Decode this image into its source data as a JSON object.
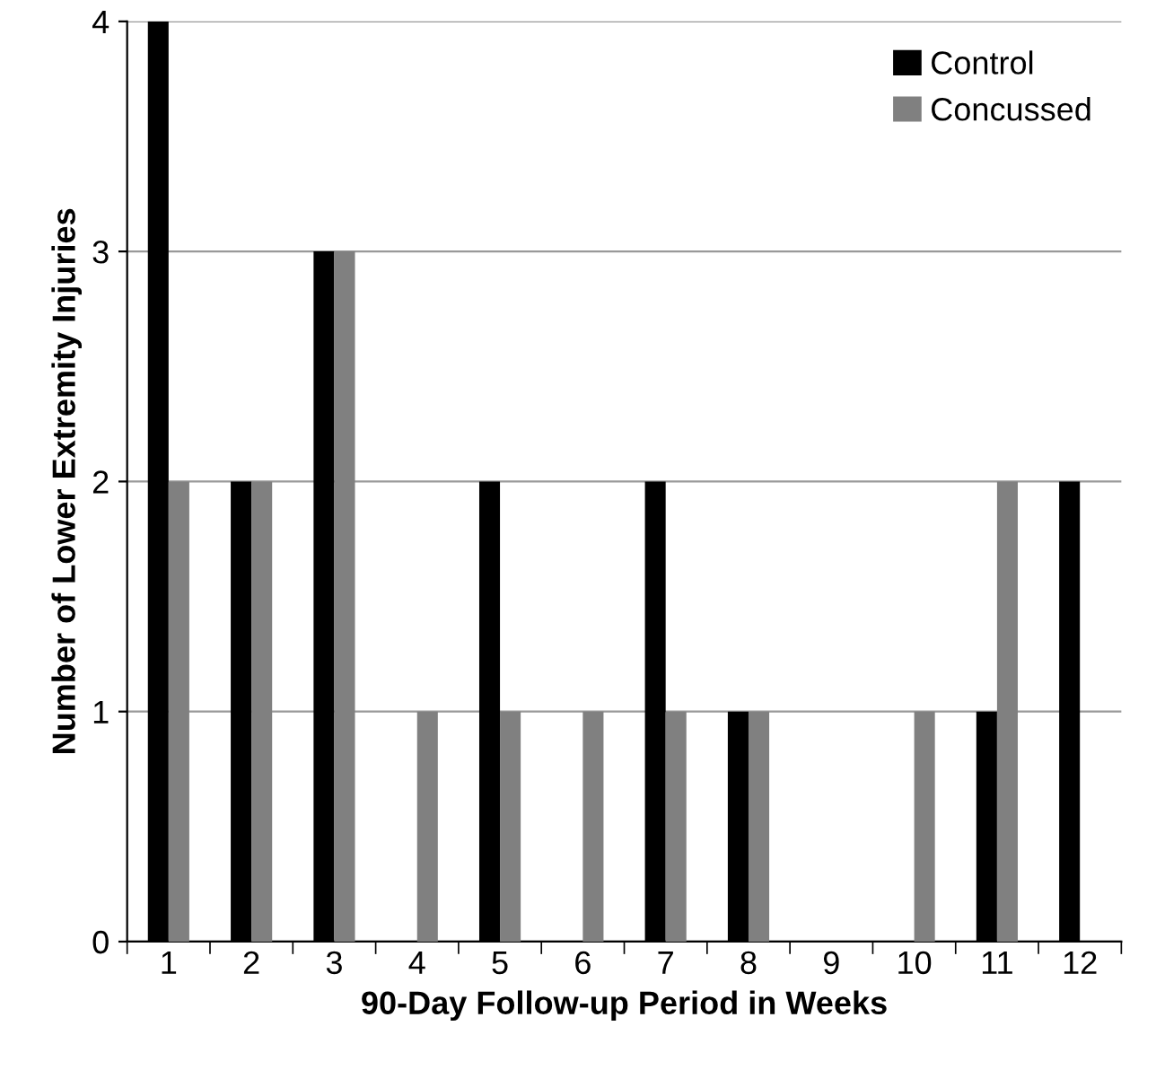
{
  "chart_data": {
    "type": "bar",
    "xlabel": "90-Day Follow-up Period in Weeks",
    "ylabel": "Number of Lower Extremity Injuries",
    "categories": [
      "1",
      "2",
      "3",
      "4",
      "5",
      "6",
      "7",
      "8",
      "9",
      "10",
      "11",
      "12"
    ],
    "series": [
      {
        "name": "Control",
        "color": "#000000",
        "values": [
          4,
          2,
          3,
          0,
          2,
          0,
          2,
          1,
          0,
          0,
          1,
          2
        ]
      },
      {
        "name": "Concussed",
        "color": "#808080",
        "values": [
          2,
          2,
          3,
          1,
          1,
          1,
          1,
          1,
          0,
          1,
          2,
          null
        ]
      }
    ],
    "ylim": [
      0,
      4
    ],
    "yticks": [
      0,
      1,
      2,
      3,
      4
    ],
    "grid": "y",
    "legend": "top right"
  }
}
